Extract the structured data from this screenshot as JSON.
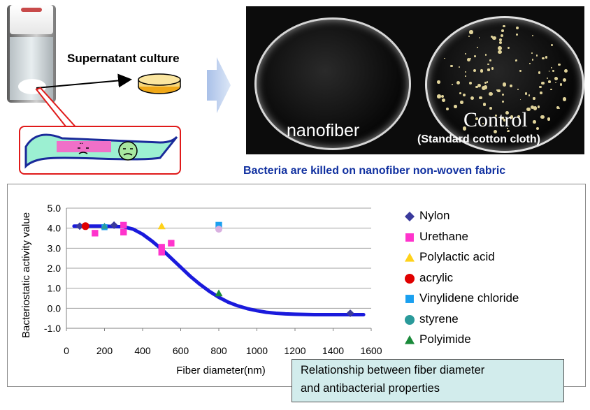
{
  "top": {
    "supernatant_label": "Supernatant culture",
    "nanofiber_label": "nanofiber",
    "control_label": "Control",
    "control_sub": "(Standard cotton cloth)",
    "caption": "Bacteria are killed on nanofiber non-woven fabric"
  },
  "colors": {
    "caption": "#1030a0",
    "curve": "#1a1adc",
    "inset_border": "#e01a1a",
    "box_fill": "#d2ecec"
  },
  "relationship_box": {
    "line1": "Relationship between fiber diameter",
    "line2": "and antibacterial properties"
  },
  "chart_data": {
    "type": "scatter",
    "xlabel": "Fiber diameter(nm)",
    "ylabel": "Bacteriostatic activity value",
    "xlim": [
      0,
      1600
    ],
    "ylim": [
      -1.0,
      5.0
    ],
    "x_ticks": [
      "0",
      "200",
      "400",
      "600",
      "800",
      "1000",
      "1200",
      "1400",
      "1600"
    ],
    "y_ticks": [
      "-1.0",
      "0.0",
      "1.0",
      "2.0",
      "3.0",
      "4.0",
      "5.0"
    ],
    "grid": "horizontal",
    "legend_position": "right",
    "series": [
      {
        "name": "Nylon",
        "marker": "diamond",
        "color": "#3a3a9c",
        "points": [
          [
            70,
            4.1
          ],
          [
            250,
            4.15
          ],
          [
            1490,
            -0.25
          ]
        ]
      },
      {
        "name": "Urethane",
        "marker": "square",
        "color": "#ff33cc",
        "points": [
          [
            150,
            3.75
          ],
          [
            300,
            3.8
          ],
          [
            300,
            4.15
          ],
          [
            500,
            2.8
          ],
          [
            500,
            3.05
          ],
          [
            550,
            3.25
          ]
        ]
      },
      {
        "name": "Polylactic acid",
        "marker": "triangle",
        "color": "#ffd21a",
        "points": [
          [
            500,
            4.1
          ]
        ]
      },
      {
        "name": "acrylic",
        "marker": "circle",
        "color": "#e00000",
        "points": [
          [
            100,
            4.1
          ]
        ]
      },
      {
        "name": "Vinylidene chloride",
        "marker": "square",
        "color": "#1aa0f0",
        "points": [
          [
            800,
            4.15
          ]
        ]
      },
      {
        "name": "styrene",
        "marker": "circle",
        "color": "#2a9a9a",
        "points": []
      },
      {
        "name": "Polyimide",
        "marker": "triangle",
        "color": "#1a8a3a",
        "points": [
          [
            800,
            0.75
          ]
        ]
      }
    ],
    "extra_points": [
      {
        "marker": "circle",
        "color": "#d9b0e0",
        "points": [
          [
            800,
            3.95
          ]
        ]
      },
      {
        "marker": "square",
        "color": "#1aa0f0",
        "points": [
          [
            200,
            4.05
          ]
        ]
      },
      {
        "marker": "triangle",
        "color": "#2a9a9a",
        "points": [
          [
            200,
            4.1
          ]
        ]
      }
    ],
    "trend_curve": {
      "color": "#1a1adc",
      "points": [
        [
          40,
          4.1
        ],
        [
          100,
          4.1
        ],
        [
          200,
          4.1
        ],
        [
          300,
          4.07
        ],
        [
          350,
          3.95
        ],
        [
          400,
          3.7
        ],
        [
          450,
          3.35
        ],
        [
          500,
          2.95
        ],
        [
          550,
          2.5
        ],
        [
          600,
          2.05
        ],
        [
          650,
          1.6
        ],
        [
          700,
          1.2
        ],
        [
          750,
          0.85
        ],
        [
          800,
          0.55
        ],
        [
          850,
          0.3
        ],
        [
          900,
          0.12
        ],
        [
          950,
          -0.02
        ],
        [
          1000,
          -0.12
        ],
        [
          1050,
          -0.2
        ],
        [
          1100,
          -0.25
        ],
        [
          1150,
          -0.28
        ],
        [
          1200,
          -0.3
        ],
        [
          1300,
          -0.32
        ],
        [
          1400,
          -0.32
        ],
        [
          1500,
          -0.32
        ],
        [
          1560,
          -0.32
        ]
      ]
    }
  }
}
